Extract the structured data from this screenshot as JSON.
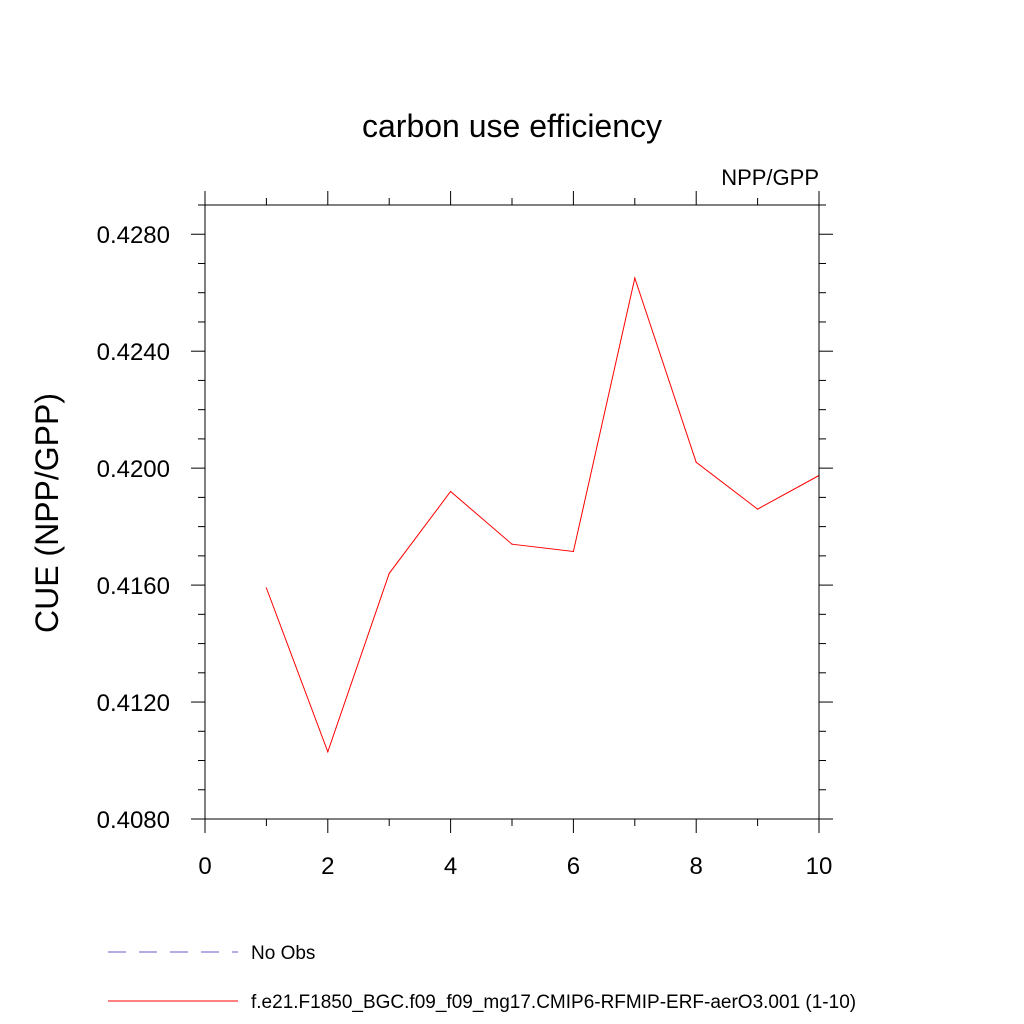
{
  "chart_data": {
    "type": "line",
    "title": "carbon use efficiency",
    "subtitle_right": "NPP/GPP",
    "ylabel": "CUE  (NPP/GPP)",
    "xlabel": "",
    "xlim": [
      0,
      10
    ],
    "ylim": [
      0.408,
      0.429
    ],
    "x_ticks": [
      0,
      2,
      4,
      6,
      8,
      10
    ],
    "x_tick_labels": [
      "0",
      "2",
      "4",
      "6",
      "8",
      "10"
    ],
    "x_minor_step": 1,
    "y_ticks": [
      0.408,
      0.412,
      0.416,
      0.42,
      0.424,
      0.428
    ],
    "y_tick_labels": [
      "0.4080",
      "0.4120",
      "0.4160",
      "0.4200",
      "0.4240",
      "0.4280"
    ],
    "y_minor_step": 0.001,
    "grid": false,
    "series": [
      {
        "name": "f.e21.F1850_BGC.f09_f09_mg17.CMIP6-RFMIP-ERF-aerO3.001 (1-10)",
        "color": "#ff0000",
        "dash": "solid",
        "x": [
          1,
          2,
          3,
          4,
          5,
          6,
          7,
          8,
          9,
          10
        ],
        "y": [
          0.4159,
          0.4103,
          0.4164,
          0.4192,
          0.4174,
          0.41715,
          0.4265,
          0.4202,
          0.4186,
          0.41975
        ]
      }
    ],
    "legend": {
      "placement": "bottom-left",
      "entries": [
        {
          "label": "No Obs",
          "color": "#6a5acd",
          "dash": "dashed"
        },
        {
          "label": "f.e21.F1850_BGC.f09_f09_mg17.CMIP6-RFMIP-ERF-aerO3.001 (1-10)",
          "color": "#ff0000",
          "dash": "solid"
        }
      ]
    }
  }
}
